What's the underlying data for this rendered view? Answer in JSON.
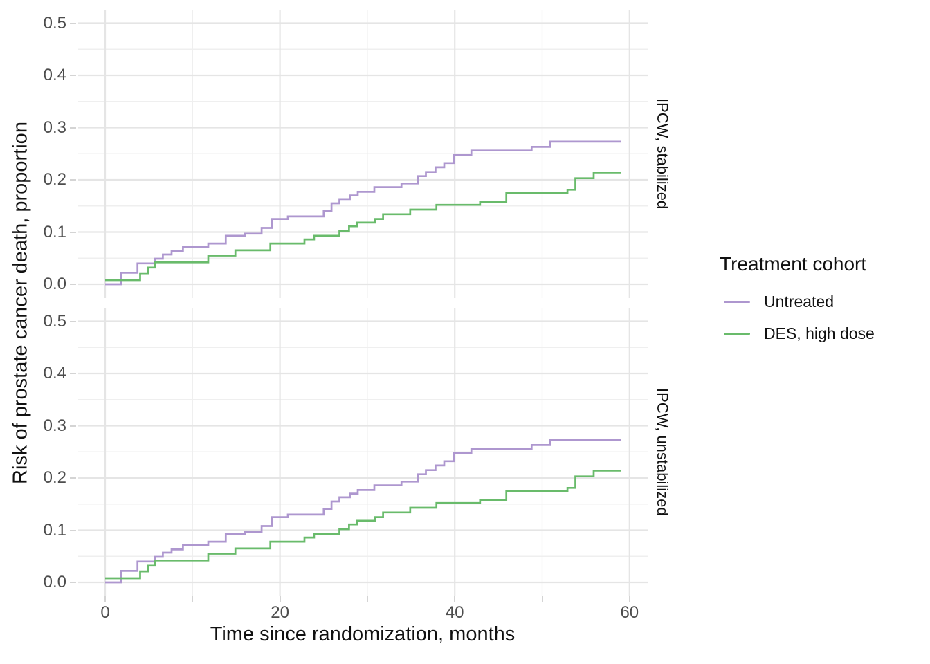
{
  "axes": {
    "x_title": "Time since randomization, months",
    "y_title": "Risk of prostate cancer death, proportion"
  },
  "legend": {
    "title": "Treatment cohort",
    "items": [
      {
        "label": "Untreated",
        "color": "#ae97cf"
      },
      {
        "label": "DES, high dose",
        "color": "#69bb6b"
      }
    ]
  },
  "chart_data": {
    "type": "line",
    "subtype": "step-cumulative-risk",
    "title": "",
    "xlabel": "Time since randomization, months",
    "ylabel": "Risk of prostate cancer death, proportion",
    "xlim": [
      0,
      60
    ],
    "ylim": [
      0,
      0.5
    ],
    "x_major_ticks": [
      0,
      20,
      40,
      60
    ],
    "x_minor_ticks": [
      10,
      30,
      50
    ],
    "x_tick_labels": [
      "0",
      "20",
      "40",
      "60"
    ],
    "y_major_ticks": [
      0.0,
      0.1,
      0.2,
      0.3,
      0.4,
      0.5
    ],
    "y_minor_ticks": [
      0.05,
      0.15,
      0.25,
      0.35,
      0.45
    ],
    "y_tick_labels": [
      "0.0",
      "0.1",
      "0.2",
      "0.3",
      "0.4",
      "0.5"
    ],
    "grid": "major-and-minor",
    "legend_position": "right",
    "x_end": 59,
    "facets": [
      {
        "label": "IPCW, stabilized",
        "series": [
          {
            "name": "Untreated",
            "color": "#ae97cf",
            "points": [
              [
                0,
                0
              ],
              [
                1.8,
                0.022
              ],
              [
                3.7,
                0.04
              ],
              [
                5.7,
                0.049
              ],
              [
                6.6,
                0.057
              ],
              [
                7.6,
                0.063
              ],
              [
                8.9,
                0.071
              ],
              [
                11.8,
                0.078
              ],
              [
                13.8,
                0.093
              ],
              [
                16,
                0.097
              ],
              [
                17.9,
                0.108
              ],
              [
                19.1,
                0.125
              ],
              [
                20.9,
                0.13
              ],
              [
                25,
                0.14
              ],
              [
                25.9,
                0.155
              ],
              [
                26.8,
                0.163
              ],
              [
                28,
                0.17
              ],
              [
                28.9,
                0.177
              ],
              [
                30.8,
                0.186
              ],
              [
                33.9,
                0.193
              ],
              [
                35.8,
                0.207
              ],
              [
                36.7,
                0.215
              ],
              [
                37.8,
                0.224
              ],
              [
                38.8,
                0.232
              ],
              [
                39.9,
                0.248
              ],
              [
                41.9,
                0.256
              ],
              [
                48.8,
                0.263
              ],
              [
                50.9,
                0.273
              ]
            ]
          },
          {
            "name": "DES, high dose",
            "color": "#69bb6b",
            "points": [
              [
                0,
                0.008
              ],
              [
                4,
                0.021
              ],
              [
                4.9,
                0.032
              ],
              [
                5.7,
                0.042
              ],
              [
                11.8,
                0.055
              ],
              [
                14.9,
                0.065
              ],
              [
                18.9,
                0.078
              ],
              [
                22.8,
                0.086
              ],
              [
                23.9,
                0.093
              ],
              [
                26.8,
                0.102
              ],
              [
                27.9,
                0.111
              ],
              [
                28.8,
                0.118
              ],
              [
                30.9,
                0.125
              ],
              [
                31.8,
                0.134
              ],
              [
                34.9,
                0.143
              ],
              [
                37.9,
                0.152
              ],
              [
                42.9,
                0.158
              ],
              [
                45.9,
                0.175
              ],
              [
                52.9,
                0.181
              ],
              [
                53.8,
                0.203
              ],
              [
                55.9,
                0.214
              ]
            ]
          }
        ]
      },
      {
        "label": "IPCW, unstabilized",
        "series": [
          {
            "name": "Untreated",
            "color": "#ae97cf",
            "points": [
              [
                0,
                0
              ],
              [
                1.8,
                0.022
              ],
              [
                3.7,
                0.04
              ],
              [
                5.7,
                0.049
              ],
              [
                6.6,
                0.057
              ],
              [
                7.6,
                0.063
              ],
              [
                8.9,
                0.071
              ],
              [
                11.8,
                0.078
              ],
              [
                13.8,
                0.093
              ],
              [
                16,
                0.097
              ],
              [
                17.9,
                0.108
              ],
              [
                19.1,
                0.125
              ],
              [
                20.9,
                0.13
              ],
              [
                25,
                0.14
              ],
              [
                25.9,
                0.155
              ],
              [
                26.8,
                0.163
              ],
              [
                28,
                0.17
              ],
              [
                28.9,
                0.177
              ],
              [
                30.8,
                0.186
              ],
              [
                33.9,
                0.193
              ],
              [
                35.8,
                0.207
              ],
              [
                36.7,
                0.215
              ],
              [
                37.8,
                0.224
              ],
              [
                38.8,
                0.232
              ],
              [
                39.9,
                0.248
              ],
              [
                41.9,
                0.256
              ],
              [
                48.8,
                0.263
              ],
              [
                50.9,
                0.273
              ]
            ]
          },
          {
            "name": "DES, high dose",
            "color": "#69bb6b",
            "points": [
              [
                0,
                0.008
              ],
              [
                4,
                0.021
              ],
              [
                4.9,
                0.032
              ],
              [
                5.7,
                0.042
              ],
              [
                11.8,
                0.055
              ],
              [
                14.9,
                0.065
              ],
              [
                18.9,
                0.078
              ],
              [
                22.8,
                0.086
              ],
              [
                23.9,
                0.093
              ],
              [
                26.8,
                0.102
              ],
              [
                27.9,
                0.111
              ],
              [
                28.8,
                0.118
              ],
              [
                30.9,
                0.125
              ],
              [
                31.8,
                0.134
              ],
              [
                34.9,
                0.143
              ],
              [
                37.9,
                0.152
              ],
              [
                42.9,
                0.158
              ],
              [
                45.9,
                0.175
              ],
              [
                52.9,
                0.181
              ],
              [
                53.8,
                0.203
              ],
              [
                55.9,
                0.214
              ]
            ]
          }
        ]
      }
    ],
    "style": {
      "line_width": 2.7,
      "major_grid_color": "#e5e5e5",
      "minor_grid_color": "#efefef",
      "tick_color": "#d4d4d4",
      "tick_label_color": "#4d4d4d",
      "text_color": "#111111",
      "background": "#ffffff"
    }
  }
}
